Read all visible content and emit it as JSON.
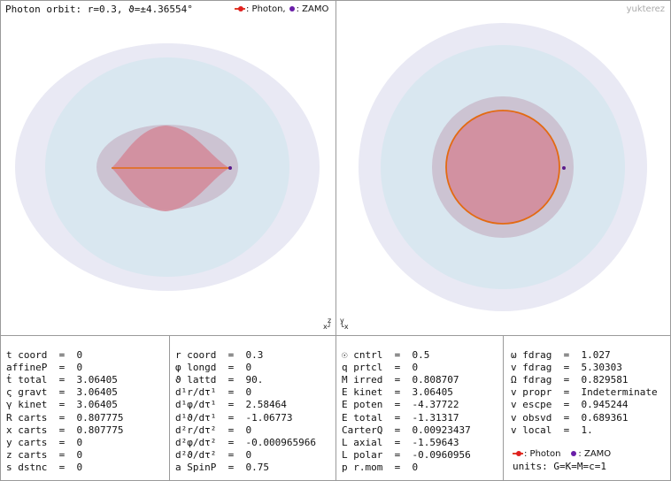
{
  "left_panel": {
    "title": "Photon orbit: r=0.3, ϑ=±4.36554°",
    "legend_photon": ": Photon,",
    "legend_zamo": ": ZAMO",
    "axis_indicator_top": "z",
    "axis_indicator_bottom": "x┘"
  },
  "right_panel": {
    "brand": "yukterez",
    "axis_indicator_top": "y",
    "axis_indicator_bottom": "└x"
  },
  "colors": {
    "photon": "#e36a12",
    "zamo": "#5a1a8a",
    "horizon": "#d98c9a",
    "ergosphere": "#a9a2c6"
  },
  "info": {
    "col1": [
      {
        "label": "t coord",
        "value": "0"
      },
      {
        "label": "affineP",
        "value": "0"
      },
      {
        "label": "ṫ total",
        "value": "3.06405"
      },
      {
        "label": "ς gravt",
        "value": "3.06405"
      },
      {
        "label": "γ kinet",
        "value": "3.06405"
      },
      {
        "label": "R carts",
        "value": "0.807775"
      },
      {
        "label": "x carts",
        "value": "0.807775"
      },
      {
        "label": "y carts",
        "value": "0"
      },
      {
        "label": "z carts",
        "value": "0"
      },
      {
        "label": "s dstnc",
        "value": "0"
      }
    ],
    "col2": [
      {
        "label": "r coord",
        "value": "0.3"
      },
      {
        "label": "φ longd",
        "value": "0"
      },
      {
        "label": "ϑ lattd",
        "value": "90."
      },
      {
        "label": "d¹r/dτ¹",
        "value": "0"
      },
      {
        "label": "d¹φ/dτ¹",
        "value": "2.58464"
      },
      {
        "label": "d¹ϑ/dτ¹",
        "value": "-1.06773"
      },
      {
        "label": "d²r/dτ²",
        "value": "0"
      },
      {
        "label": "d²φ/dτ²",
        "value": "-0.000965966"
      },
      {
        "label": "d²ϑ/dτ²",
        "value": "0"
      },
      {
        "label": "a SpinP",
        "value": "0.75"
      }
    ],
    "col3": [
      {
        "label": "☉ cntrl",
        "value": "0.5"
      },
      {
        "label": "q prtcl",
        "value": "0"
      },
      {
        "label": "M irred",
        "value": "0.808707"
      },
      {
        "label": "E kinet",
        "value": "3.06405"
      },
      {
        "label": "E poten",
        "value": "-4.37722"
      },
      {
        "label": "E total",
        "value": "-1.31317"
      },
      {
        "label": "CarterQ",
        "value": "0.00923437"
      },
      {
        "label": "L axial",
        "value": "-1.59643"
      },
      {
        "label": "L polar",
        "value": "-0.0960956"
      },
      {
        "label": "p r.mom",
        "value": "0"
      }
    ],
    "col4": [
      {
        "label": "ω fdrag",
        "value": "1.027"
      },
      {
        "label": "v fdrag",
        "value": "5.30303"
      },
      {
        "label": "Ω fdrag",
        "value": "0.829581"
      },
      {
        "label": "v propr",
        "value": "Indeterminate"
      },
      {
        "label": "v escpe",
        "value": "0.945244"
      },
      {
        "label": "v obsvd",
        "value": "0.689361"
      },
      {
        "label": "v local",
        "value": "1."
      }
    ],
    "legend_photon": ": Photon",
    "legend_zamo": ": ZAMO",
    "units": "units: G=K=M=c=1"
  }
}
